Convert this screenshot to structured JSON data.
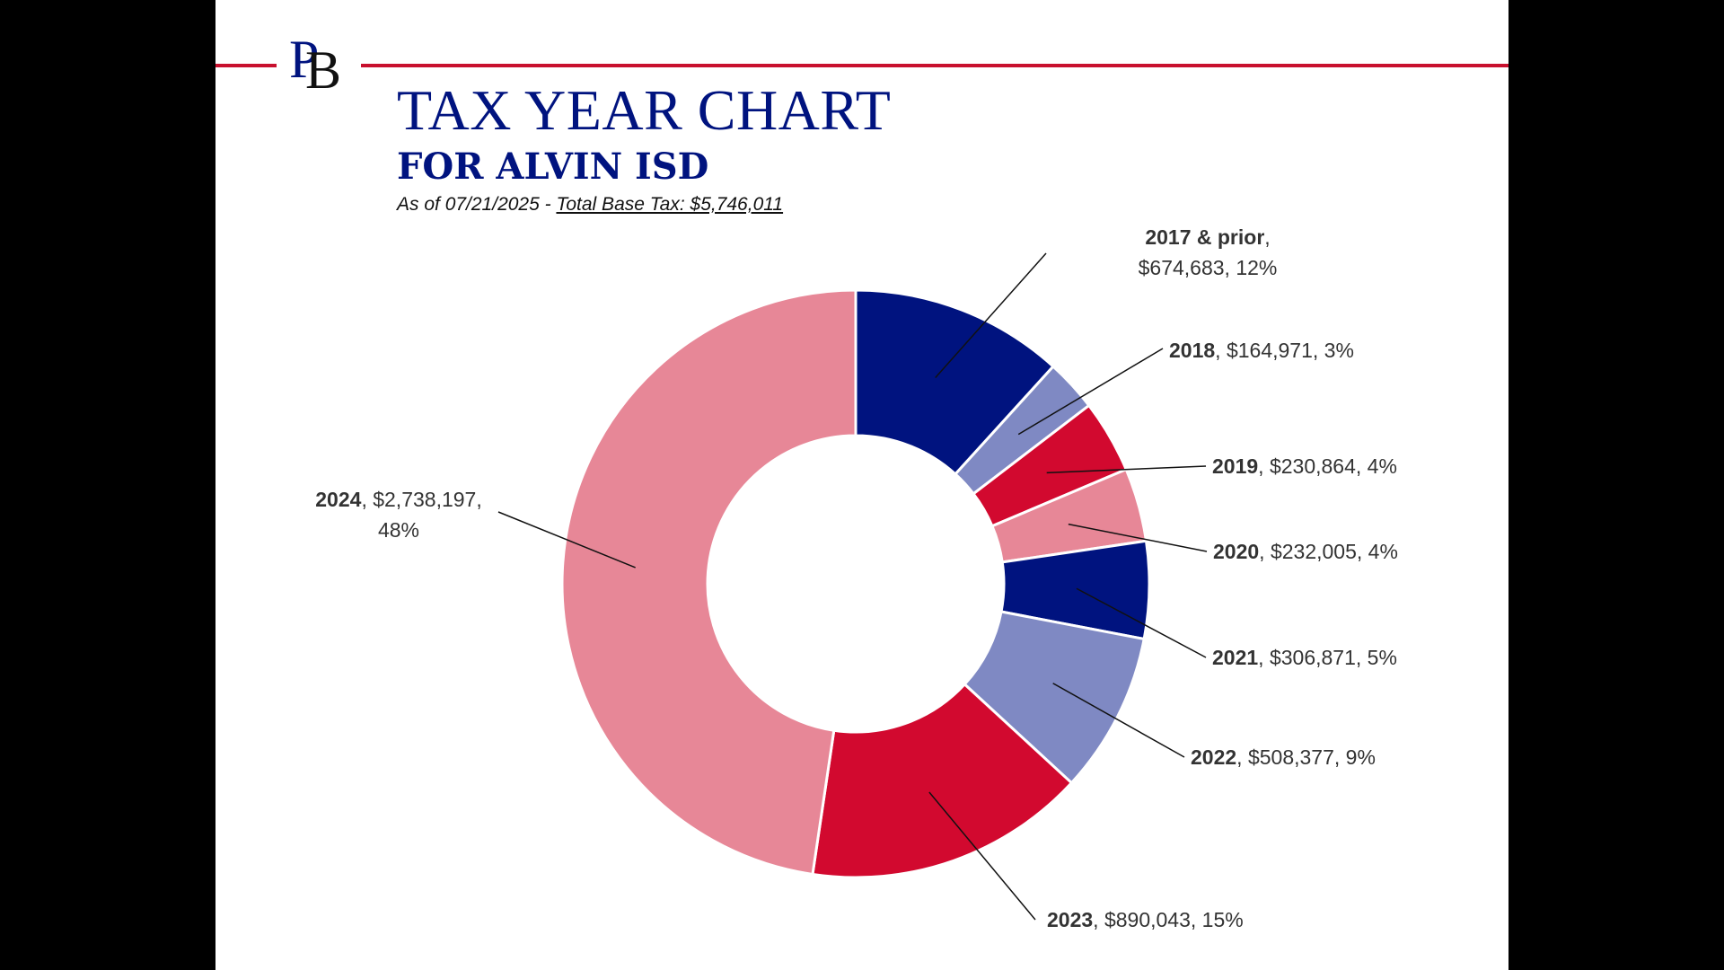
{
  "header": {
    "title": "TAX YEAR CHART",
    "subtitle": "FOR ALVIN ISD",
    "as_of": "As of 07/21/2025 - ",
    "total": "Total Base Tax: $5,746,011",
    "logo_p": "P",
    "logo_b": "B"
  },
  "colors": {
    "navy": "#00137f",
    "lavender": "#7f89c3",
    "red": "#d2092f",
    "pink": "#e78797",
    "brand_red": "#c8102e"
  },
  "chart_data": {
    "type": "pie",
    "donut": true,
    "categories": [
      "2017 & prior",
      "2018",
      "2019",
      "2020",
      "2021",
      "2022",
      "2023",
      "2024"
    ],
    "values": [
      674683,
      164971,
      230864,
      232005,
      306871,
      508377,
      890043,
      2738197
    ],
    "value_labels": [
      "$674,683",
      "$164,971",
      "$230,864",
      "$232,005",
      "$306,871",
      "$508,377",
      "$890,043",
      "$2,738,197"
    ],
    "percent_labels": [
      "12%",
      "3%",
      "4%",
      "4%",
      "5%",
      "9%",
      "15%",
      "48%"
    ],
    "colors": [
      "#00137f",
      "#7f89c3",
      "#d2092f",
      "#e78797",
      "#00137f",
      "#7f89c3",
      "#d2092f",
      "#e78797"
    ],
    "total": 5746011,
    "legend": "none",
    "data_labels": "outside-with-leader-lines"
  }
}
